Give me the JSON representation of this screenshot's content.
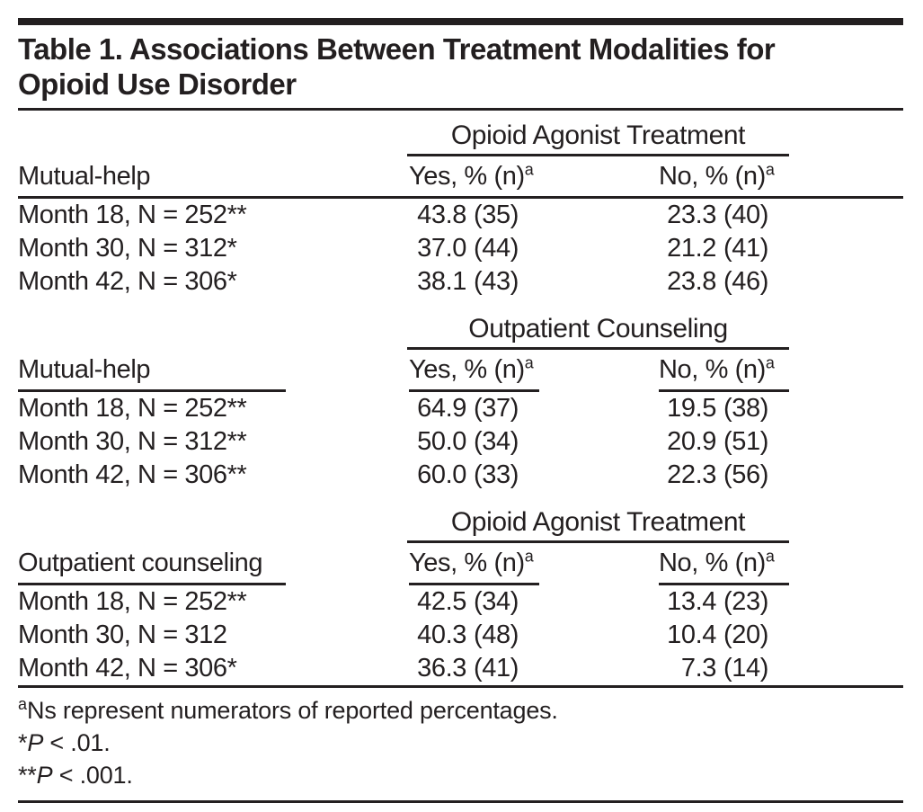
{
  "colors": {
    "ink": "#231f20",
    "background": "#ffffff"
  },
  "title": "Table 1. Associations Between Treatment Modalities for Opioid Use Disorder",
  "column_headers": {
    "yes": {
      "text": "Yes, % (n)",
      "sup": "a"
    },
    "no": {
      "text": "No, % (n)",
      "sup": "a"
    }
  },
  "sections": [
    {
      "span_header": "Opioid Agonist Treatment",
      "row_label_header": "Mutual-help",
      "rows": [
        {
          "label": "Month 18, N = 252**",
          "yes_pct": "43.8",
          "yes_n": "(35)",
          "no_pct": "23.3",
          "no_n": "(40)"
        },
        {
          "label": "Month 30, N = 312*",
          "yes_pct": "37.0",
          "yes_n": "(44)",
          "no_pct": "21.2",
          "no_n": "(41)"
        },
        {
          "label": "Month 42, N = 306*",
          "yes_pct": "38.1",
          "yes_n": "(43)",
          "no_pct": "23.8",
          "no_n": "(46)"
        }
      ]
    },
    {
      "span_header": "Outpatient Counseling",
      "row_label_header": "Mutual-help",
      "rows": [
        {
          "label": "Month 18, N = 252**",
          "yes_pct": "64.9",
          "yes_n": "(37)",
          "no_pct": "19.5",
          "no_n": "(38)"
        },
        {
          "label": "Month 30, N = 312**",
          "yes_pct": "50.0",
          "yes_n": "(34)",
          "no_pct": "20.9",
          "no_n": "(51)"
        },
        {
          "label": "Month 42, N = 306**",
          "yes_pct": "60.0",
          "yes_n": "(33)",
          "no_pct": "22.3",
          "no_n": "(56)"
        }
      ]
    },
    {
      "span_header": "Opioid Agonist Treatment",
      "row_label_header": "Outpatient counseling",
      "rows": [
        {
          "label": "Month 18, N = 252**",
          "yes_pct": "42.5",
          "yes_n": "(34)",
          "no_pct": "13.4",
          "no_n": "(23)"
        },
        {
          "label": "Month 30, N = 312",
          "yes_pct": "40.3",
          "yes_n": "(48)",
          "no_pct": "10.4",
          "no_n": "(20)"
        },
        {
          "label": "Month 42, N = 306*",
          "yes_pct": "36.3",
          "yes_n": "(41)",
          "no_pct": "7.3",
          "no_n": "(14)"
        }
      ]
    }
  ],
  "footnotes": {
    "a": {
      "sup": "a",
      "text": "Ns represent numerators of reported percentages."
    },
    "single_star": {
      "stars": "*",
      "p": "P",
      "rest": " < .01."
    },
    "double_star": {
      "stars": "**",
      "p": "P",
      "rest": " < .001."
    }
  }
}
